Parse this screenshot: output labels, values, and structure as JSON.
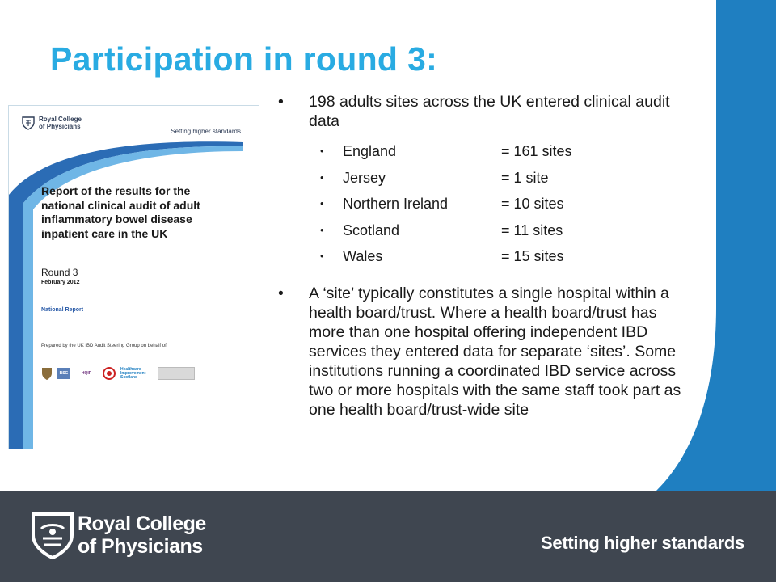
{
  "slide": {
    "title": "Participation in round 3:",
    "colors": {
      "title": "#29abe2",
      "accent_band": "#1f7fc1",
      "footer": "#3f4650"
    }
  },
  "report_cover": {
    "logo_line1": "Royal College",
    "logo_line2": "of Physicians",
    "tagline": "Setting higher standards",
    "title": "Report of the results for the national clinical audit of adult inflammatory bowel disease inpatient care in the UK",
    "round": "Round 3",
    "date": "February 2012",
    "report_type": "National Report",
    "prepared_by": "Prepared by the UK IBD Audit Steering Group on behalf of:",
    "partner_logos": [
      "HQIP",
      "Healthcare Improvement Scotland"
    ]
  },
  "bullets": {
    "first": "198 adults sites across the UK entered clinical audit data",
    "sites": [
      {
        "country": "England",
        "value": "= 161 sites"
      },
      {
        "country": "Jersey",
        "value": "= 1 site"
      },
      {
        "country": "Northern Ireland",
        "value": "= 10 sites"
      },
      {
        "country": "Scotland",
        "value": "= 11 sites"
      },
      {
        "country": "Wales",
        "value": "= 15 sites"
      }
    ],
    "second": "A ‘site’ typically constitutes a single hospital within a health board/trust. Where a health board/trust has more than one hospital offering independent IBD services they entered data for separate ‘sites’. Some institutions running a coordinated IBD service across two or more hospitals with the same staff took part as one health board/trust-wide site"
  },
  "footer": {
    "org_line1": "Royal College",
    "org_line2": "of Physicians",
    "tagline": "Setting higher standards"
  }
}
